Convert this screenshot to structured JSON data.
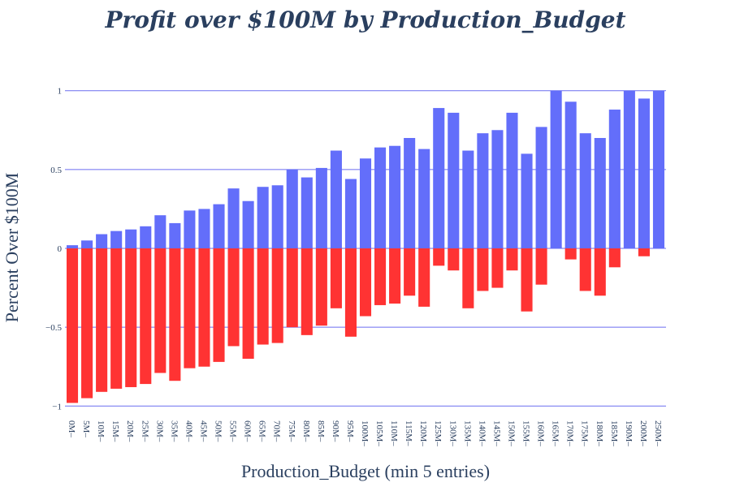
{
  "chart_data": {
    "type": "bar",
    "title": "Profit over $100M by Production_Budget",
    "xlabel": "Production_Budget (min 5 entries)",
    "ylabel": "Percent Over $100M",
    "ylim": [
      -1.05,
      1.05
    ],
    "yticks": [
      {
        "value": 1,
        "label": "1"
      },
      {
        "value": 0.5,
        "label": "0.5"
      },
      {
        "value": 0,
        "label": "0"
      },
      {
        "value": -0.5,
        "label": "−0.5"
      },
      {
        "value": -1,
        "label": "−1"
      }
    ],
    "categories": [
      "0M–",
      "5M–",
      "10M–",
      "15M–",
      "20M–",
      "25M–",
      "30M–",
      "35M–",
      "40M–",
      "45M–",
      "50M–",
      "55M–",
      "60M–",
      "65M–",
      "70M–",
      "75M–",
      "80M–",
      "85M–",
      "90M–",
      "95M–",
      "100M–",
      "105M–",
      "110M–",
      "115M–",
      "120M–",
      "125M–",
      "130M–",
      "135M–",
      "140M–",
      "145M–",
      "150M–",
      "155M–",
      "160M–",
      "165M–",
      "170M–",
      "175M–",
      "180M–",
      "185M–",
      "190M–",
      "200M–",
      "250M–"
    ],
    "series": [
      {
        "color": "#636efa",
        "values": [
          0.02,
          0.05,
          0.09,
          0.11,
          0.12,
          0.14,
          0.21,
          0.16,
          0.24,
          0.25,
          0.28,
          0.38,
          0.3,
          0.39,
          0.4,
          0.5,
          0.45,
          0.51,
          0.62,
          0.44,
          0.57,
          0.64,
          0.65,
          0.7,
          0.63,
          0.89,
          0.86,
          0.62,
          0.73,
          0.75,
          0.86,
          0.6,
          0.77,
          1.0,
          0.93,
          0.73,
          0.7,
          0.88,
          1.0,
          0.95,
          1.0
        ]
      },
      {
        "color": "#ff3333",
        "values": [
          -0.98,
          -0.95,
          -0.91,
          -0.89,
          -0.88,
          -0.86,
          -0.79,
          -0.84,
          -0.76,
          -0.75,
          -0.72,
          -0.62,
          -0.7,
          -0.61,
          -0.6,
          -0.5,
          -0.55,
          -0.49,
          -0.38,
          -0.56,
          -0.43,
          -0.36,
          -0.35,
          -0.3,
          -0.37,
          -0.11,
          -0.14,
          -0.38,
          -0.27,
          -0.25,
          -0.14,
          -0.4,
          -0.23,
          0,
          -0.07,
          -0.27,
          -0.3,
          -0.12,
          0,
          -0.05,
          0
        ]
      }
    ],
    "grid": true,
    "legend": "none"
  }
}
